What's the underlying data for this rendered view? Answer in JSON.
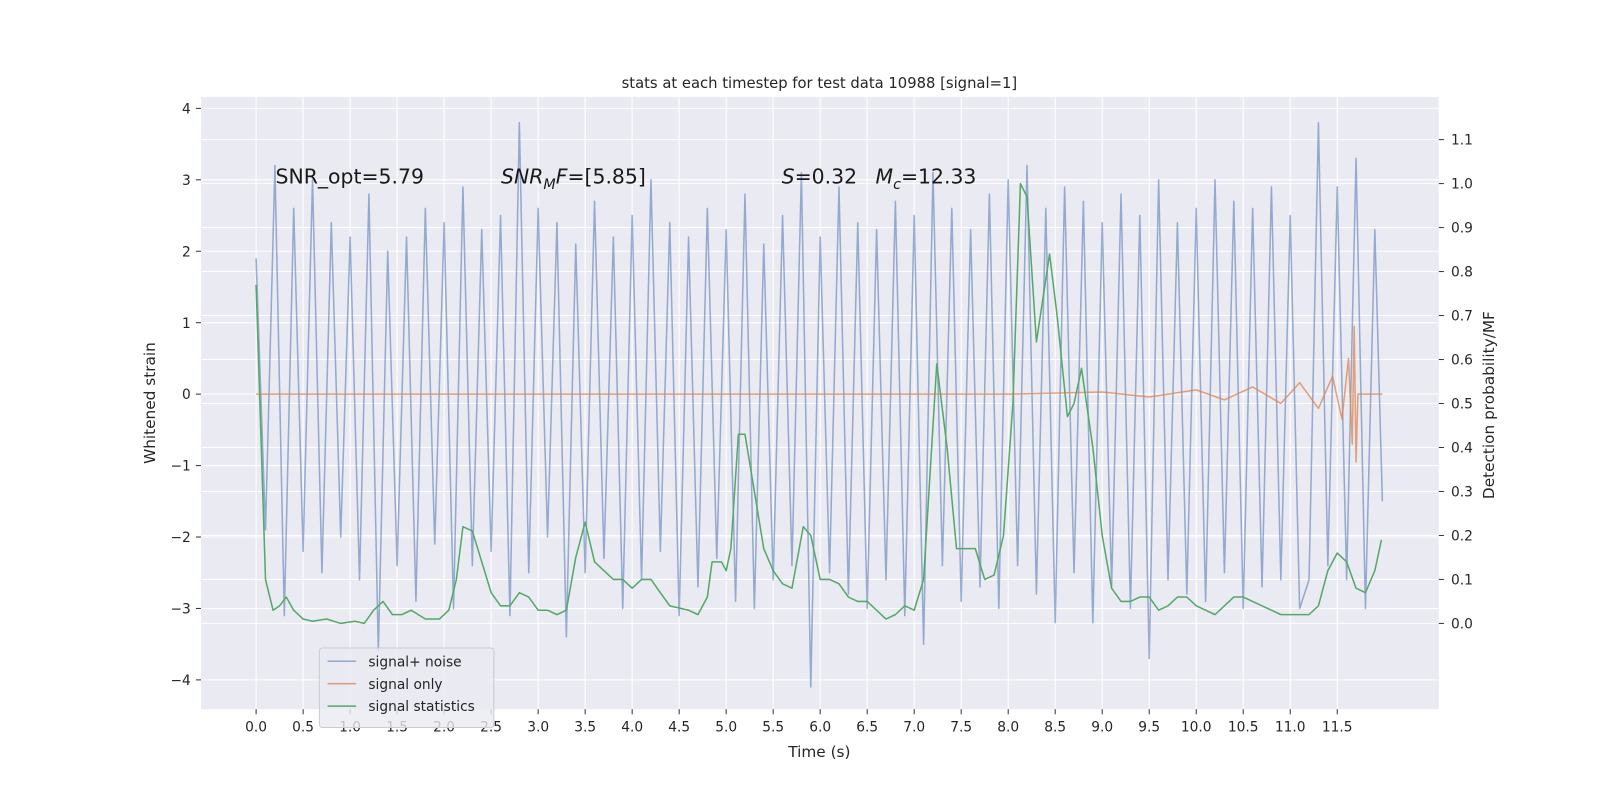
{
  "chart_data": {
    "type": "line",
    "title": "stats at each timestep for test data 10988 [signal=1]",
    "x_label": "Time (s)",
    "y_label": "Whitened strain",
    "y2_label": "Detection probability/MF",
    "grid": true,
    "legend_loc": "lower left",
    "xlim": [
      -0.586,
      12.58
    ],
    "ylim": [
      -4.41,
      4.16
    ],
    "y2lim": [
      -0.195,
      1.197
    ],
    "xticks": [
      {
        "value": 0,
        "label": "0.0"
      },
      0.5,
      {
        "value": 1,
        "label": "1.0"
      },
      1.5,
      {
        "value": 2,
        "label": "2.0"
      },
      2.5,
      {
        "value": 3,
        "label": "3.0"
      },
      3.5,
      {
        "value": 4,
        "label": "4.0"
      },
      4.5,
      {
        "value": 5,
        "label": "5.0"
      },
      5.5,
      {
        "value": 6,
        "label": "6.0"
      },
      6.5,
      {
        "value": 7,
        "label": "7.0"
      },
      7.5,
      {
        "value": 8,
        "label": "8.0"
      },
      8.5,
      {
        "value": 9,
        "label": "9.0"
      },
      9.5,
      {
        "value": 10,
        "label": "10.0"
      },
      10.5,
      {
        "value": 11,
        "label": "11.0"
      },
      11.5
    ],
    "yticks": [
      {
        "value": -4,
        "label": "−4"
      },
      {
        "value": -3,
        "label": "−3"
      },
      {
        "value": -2,
        "label": "−2"
      },
      {
        "value": -1,
        "label": "−1"
      },
      0,
      1,
      2,
      3,
      4
    ],
    "y2ticks": [
      {
        "value": 0,
        "label": "0.0"
      },
      0.1,
      0.2,
      0.3,
      0.4,
      0.5,
      0.6,
      0.7,
      0.8,
      0.9,
      {
        "value": 1,
        "label": "1.0"
      },
      1.1
    ],
    "annotations": [
      [
        {
          "text": "SNR_opt=5.79"
        }
      ],
      [
        {
          "text": "SNR",
          "italic": true
        },
        {
          "text": "M",
          "italic": true,
          "sub": true
        },
        {
          "text": "F",
          "italic": true
        },
        {
          "text": "=[5.85]"
        }
      ],
      [
        {
          "text": "S",
          "italic": true
        },
        {
          "text": "=0.32"
        }
      ],
      [
        {
          "text": "M",
          "italic": true
        },
        {
          "text": "c",
          "italic": true,
          "sub": true
        },
        {
          "text": "=12.33"
        }
      ]
    ],
    "series": [
      {
        "name": "signal+ noise",
        "color": "#4c72b0",
        "opacity": 0.55,
        "x": [
          0,
          0.1,
          0.2,
          0.3,
          0.4,
          0.5,
          0.6,
          0.7,
          0.8,
          0.9,
          1,
          1.1,
          1.2,
          1.3,
          1.4,
          1.5,
          1.6,
          1.7,
          1.8,
          1.9,
          2,
          2.1,
          2.2,
          2.3,
          2.4,
          2.5,
          2.6,
          2.7,
          2.8,
          2.9,
          3,
          3.1,
          3.2,
          3.3,
          3.4,
          3.5,
          3.6,
          3.7,
          3.8,
          3.9,
          4,
          4.1,
          4.2,
          4.3,
          4.4,
          4.5,
          4.6,
          4.7,
          4.8,
          4.9,
          5,
          5.1,
          5.2,
          5.3,
          5.4,
          5.5,
          5.6,
          5.7,
          5.8,
          5.9,
          6,
          6.1,
          6.2,
          6.3,
          6.4,
          6.5,
          6.6,
          6.7,
          6.8,
          6.9,
          7,
          7.1,
          7.2,
          7.3,
          7.4,
          7.5,
          7.6,
          7.7,
          7.8,
          7.9,
          8,
          8.1,
          8.2,
          8.3,
          8.4,
          8.5,
          8.6,
          8.7,
          8.8,
          8.9,
          9,
          9.1,
          9.2,
          9.3,
          9.4,
          9.5,
          9.6,
          9.7,
          9.8,
          9.9,
          10,
          10.1,
          10.2,
          10.3,
          10.4,
          10.5,
          10.6,
          10.7,
          10.8,
          10.9,
          11,
          11.1,
          11.2,
          11.3,
          11.4,
          11.5,
          11.6,
          11.7,
          11.8,
          11.9,
          11.98
        ],
        "values": [
          1.9,
          -1.9,
          3.2,
          -3.1,
          2.6,
          -2.2,
          3.0,
          -2.5,
          2.4,
          -2.0,
          2.2,
          -2.6,
          2.8,
          -3.6,
          2.0,
          -2.4,
          2.2,
          -2.9,
          2.6,
          -2.1,
          2.4,
          -3.0,
          2.9,
          -2.4,
          2.3,
          -2.2,
          2.5,
          -3.1,
          3.8,
          -2.5,
          2.6,
          -2.0,
          2.4,
          -3.4,
          2.1,
          -2.5,
          2.7,
          -2.3,
          2.2,
          -3.0,
          2.5,
          -2.6,
          3.0,
          -2.2,
          2.4,
          -3.1,
          2.2,
          -2.7,
          2.6,
          -2.3,
          2.3,
          -2.9,
          2.8,
          -3.0,
          2.1,
          -2.6,
          2.5,
          -2.4,
          3.1,
          -4.1,
          2.2,
          -2.5,
          2.9,
          -2.8,
          2.4,
          -3.0,
          2.3,
          -2.6,
          2.7,
          -3.1,
          2.5,
          -3.5,
          3.1,
          -2.4,
          2.6,
          -2.9,
          2.3,
          -2.7,
          2.8,
          -3.0,
          3.0,
          -2.4,
          3.2,
          -2.8,
          2.6,
          -3.2,
          2.9,
          -2.5,
          2.7,
          -3.2,
          2.4,
          -2.7,
          2.8,
          -3.0,
          2.5,
          -3.7,
          3.0,
          -2.6,
          2.4,
          -2.8,
          2.6,
          -2.9,
          3.0,
          -2.5,
          2.7,
          -3.0,
          2.6,
          -2.7,
          2.9,
          -2.6,
          2.5,
          -3.0,
          -2.6,
          3.8,
          -2.4,
          2.9,
          -2.6,
          3.3,
          -3.0,
          2.3,
          -1.5
        ]
      },
      {
        "name": "signal only",
        "color": "#dd8452",
        "opacity": 0.75,
        "x": [
          0,
          8.0,
          9.0,
          9.5,
          10.0,
          10.3,
          10.6,
          10.9,
          11.1,
          11.3,
          11.45,
          11.55,
          11.62,
          11.66,
          11.68,
          11.7,
          11.72,
          11.98
        ],
        "values": [
          0,
          0,
          0.03,
          -0.04,
          0.06,
          -0.08,
          0.1,
          -0.13,
          0.16,
          -0.2,
          0.25,
          -0.35,
          0.5,
          -0.7,
          0.95,
          -0.95,
          0,
          0
        ]
      },
      {
        "name": "signal statistics",
        "color": "#55a868",
        "opacity": 1,
        "axis": "y2",
        "x": [
          0,
          0.1,
          0.18,
          0.25,
          0.32,
          0.4,
          0.5,
          0.6,
          0.75,
          0.9,
          1.05,
          1.15,
          1.25,
          1.35,
          1.45,
          1.55,
          1.65,
          1.8,
          1.95,
          2.05,
          2.13,
          2.2,
          2.3,
          2.4,
          2.5,
          2.6,
          2.7,
          2.8,
          2.9,
          3.0,
          3.1,
          3.2,
          3.3,
          3.4,
          3.5,
          3.6,
          3.7,
          3.8,
          3.9,
          4.0,
          4.1,
          4.2,
          4.3,
          4.4,
          4.5,
          4.6,
          4.7,
          4.8,
          4.85,
          4.95,
          5.0,
          5.05,
          5.13,
          5.2,
          5.3,
          5.4,
          5.5,
          5.6,
          5.7,
          5.82,
          5.9,
          6.0,
          6.1,
          6.2,
          6.3,
          6.4,
          6.5,
          6.6,
          6.7,
          6.8,
          6.9,
          7.0,
          7.1,
          7.24,
          7.35,
          7.45,
          7.55,
          7.65,
          7.75,
          7.85,
          7.95,
          8.05,
          8.13,
          8.2,
          8.3,
          8.44,
          8.52,
          8.63,
          8.7,
          8.78,
          8.9,
          9.0,
          9.1,
          9.2,
          9.3,
          9.4,
          9.5,
          9.6,
          9.7,
          9.8,
          9.9,
          10.0,
          10.1,
          10.2,
          10.3,
          10.4,
          10.5,
          10.6,
          10.7,
          10.8,
          10.9,
          11.0,
          11.1,
          11.2,
          11.3,
          11.4,
          11.5,
          11.6,
          11.7,
          11.8,
          11.9,
          11.97
        ],
        "values": [
          0.77,
          0.1,
          0.03,
          0.04,
          0.06,
          0.03,
          0.01,
          0.005,
          0.01,
          0.0,
          0.005,
          0.0,
          0.03,
          0.05,
          0.02,
          0.02,
          0.03,
          0.01,
          0.01,
          0.03,
          0.1,
          0.22,
          0.21,
          0.14,
          0.07,
          0.04,
          0.04,
          0.07,
          0.06,
          0.03,
          0.03,
          0.02,
          0.03,
          0.15,
          0.23,
          0.14,
          0.12,
          0.1,
          0.1,
          0.08,
          0.1,
          0.1,
          0.07,
          0.04,
          0.035,
          0.03,
          0.02,
          0.06,
          0.14,
          0.14,
          0.12,
          0.17,
          0.43,
          0.43,
          0.3,
          0.17,
          0.12,
          0.09,
          0.08,
          0.22,
          0.2,
          0.1,
          0.1,
          0.09,
          0.06,
          0.05,
          0.05,
          0.03,
          0.01,
          0.02,
          0.04,
          0.03,
          0.1,
          0.59,
          0.4,
          0.17,
          0.17,
          0.17,
          0.1,
          0.11,
          0.2,
          0.5,
          1.0,
          0.97,
          0.64,
          0.84,
          0.7,
          0.47,
          0.5,
          0.58,
          0.4,
          0.2,
          0.08,
          0.05,
          0.05,
          0.06,
          0.06,
          0.03,
          0.04,
          0.06,
          0.06,
          0.04,
          0.03,
          0.02,
          0.04,
          0.06,
          0.06,
          0.05,
          0.04,
          0.03,
          0.02,
          0.02,
          0.02,
          0.02,
          0.04,
          0.12,
          0.16,
          0.14,
          0.08,
          0.07,
          0.12,
          0.19
        ]
      }
    ]
  }
}
